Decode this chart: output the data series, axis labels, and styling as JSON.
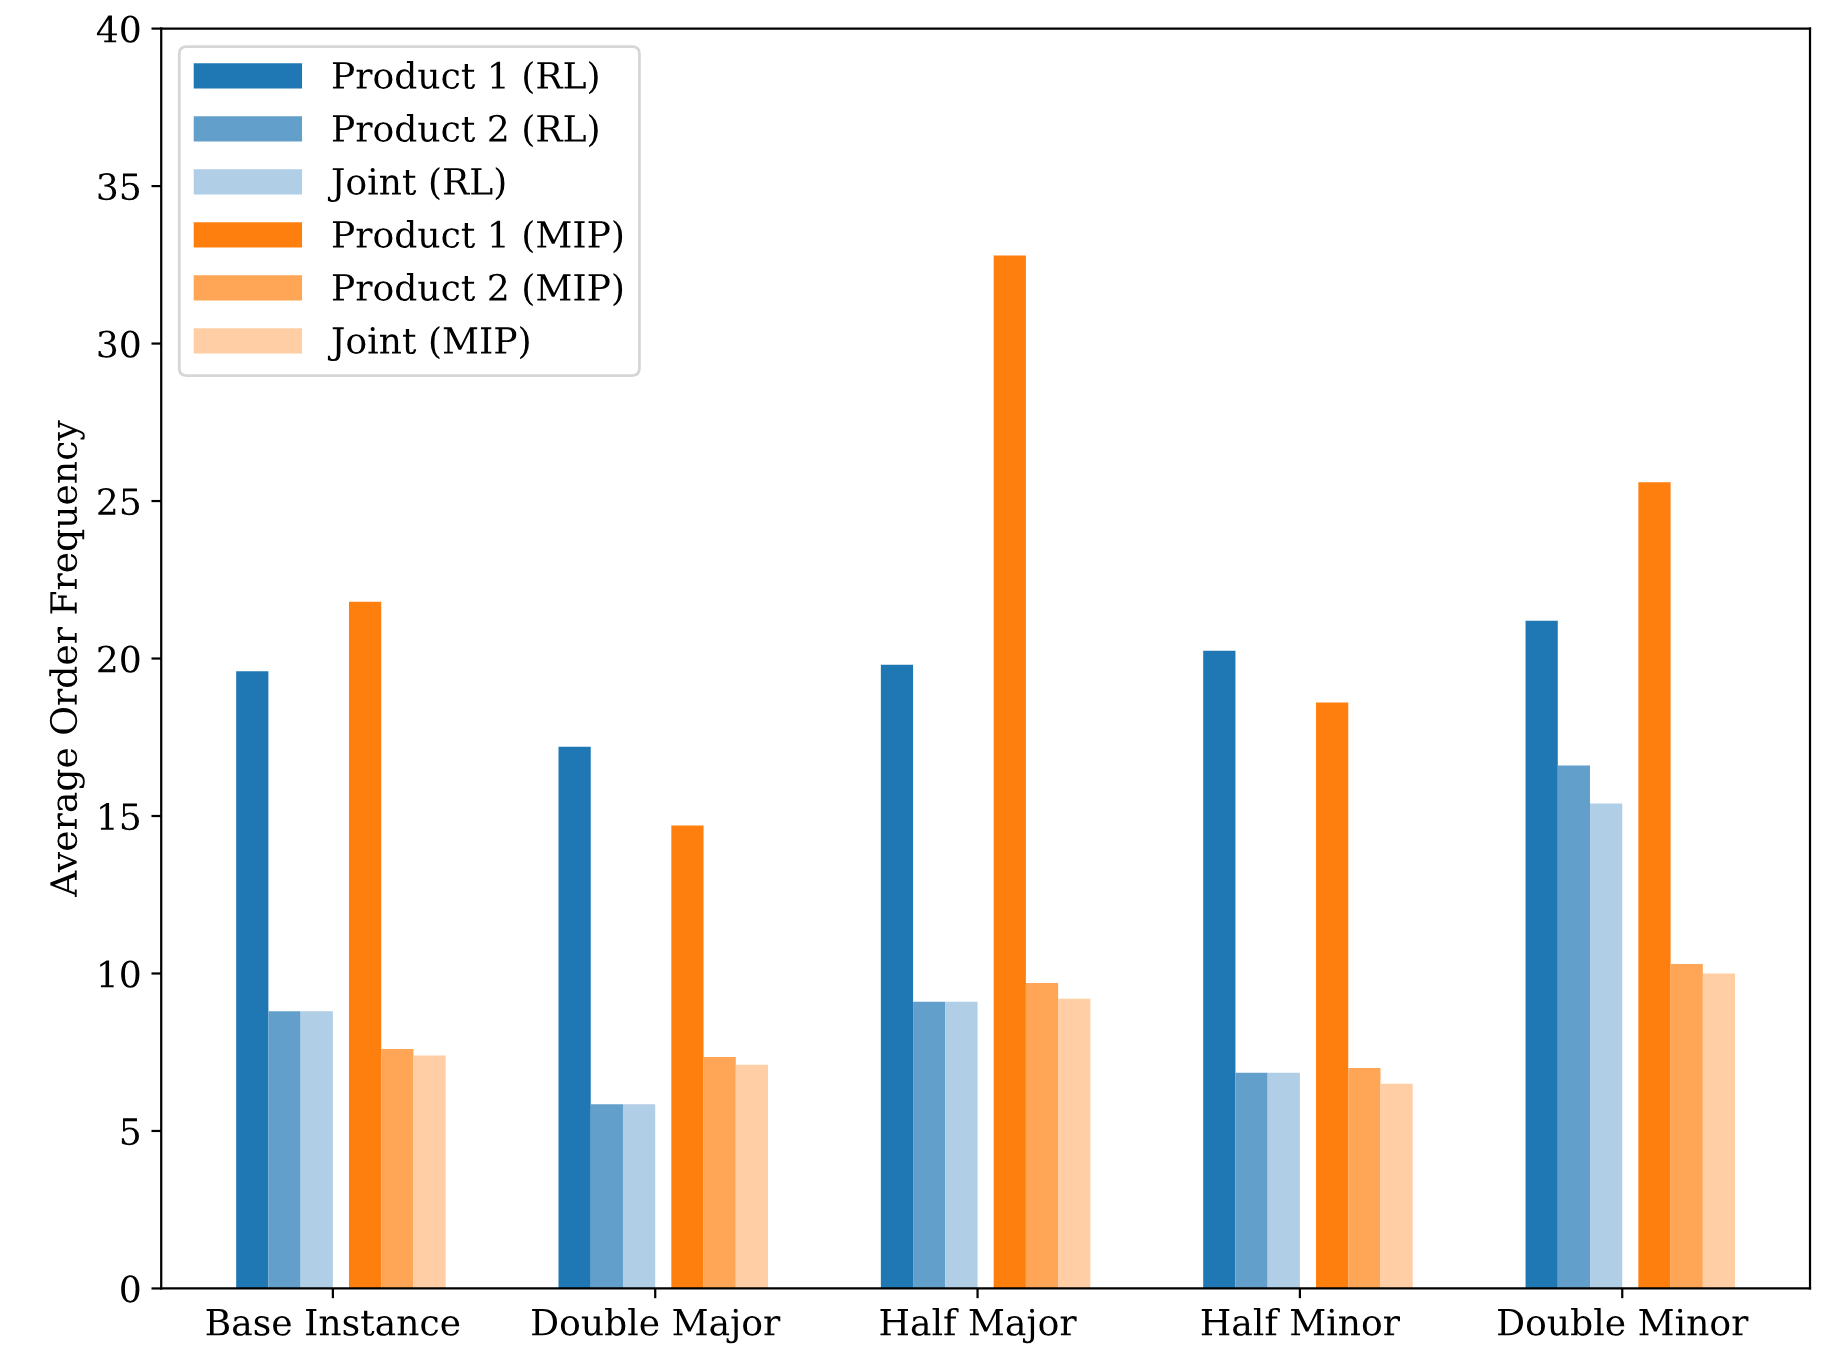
{
  "chart_data": {
    "type": "bar",
    "ylabel": "Average Order Frequency",
    "categories": [
      "Base Instance",
      "Double Major",
      "Half Major",
      "Half Minor",
      "Double Minor"
    ],
    "series": [
      {
        "name": "Product 1 (RL)",
        "color": "#1f77b4",
        "values": [
          19.6,
          17.2,
          19.8,
          20.25,
          21.2
        ]
      },
      {
        "name": "Product 2 (RL)",
        "color": "#62a0cb",
        "values": [
          8.8,
          5.85,
          9.1,
          6.85,
          16.6
        ]
      },
      {
        "name": "Joint (RL)",
        "color": "#b0cee6",
        "values": [
          8.8,
          5.85,
          9.1,
          6.85,
          15.4
        ]
      },
      {
        "name": "Product 1 (MIP)",
        "color": "#ff7f0e",
        "values": [
          21.8,
          14.7,
          32.8,
          18.6,
          25.6
        ]
      },
      {
        "name": "Product 2 (MIP)",
        "color": "#ffa556",
        "values": [
          7.6,
          7.35,
          9.7,
          7.0,
          10.3
        ]
      },
      {
        "name": "Joint (MIP)",
        "color": "#ffcea4",
        "values": [
          7.4,
          7.1,
          9.2,
          6.5,
          10.0
        ]
      }
    ],
    "ylim": [
      0,
      40
    ],
    "yticks": [
      0,
      5,
      10,
      15,
      20,
      25,
      30,
      35,
      40
    ],
    "legend": "top left",
    "grid": false
  }
}
